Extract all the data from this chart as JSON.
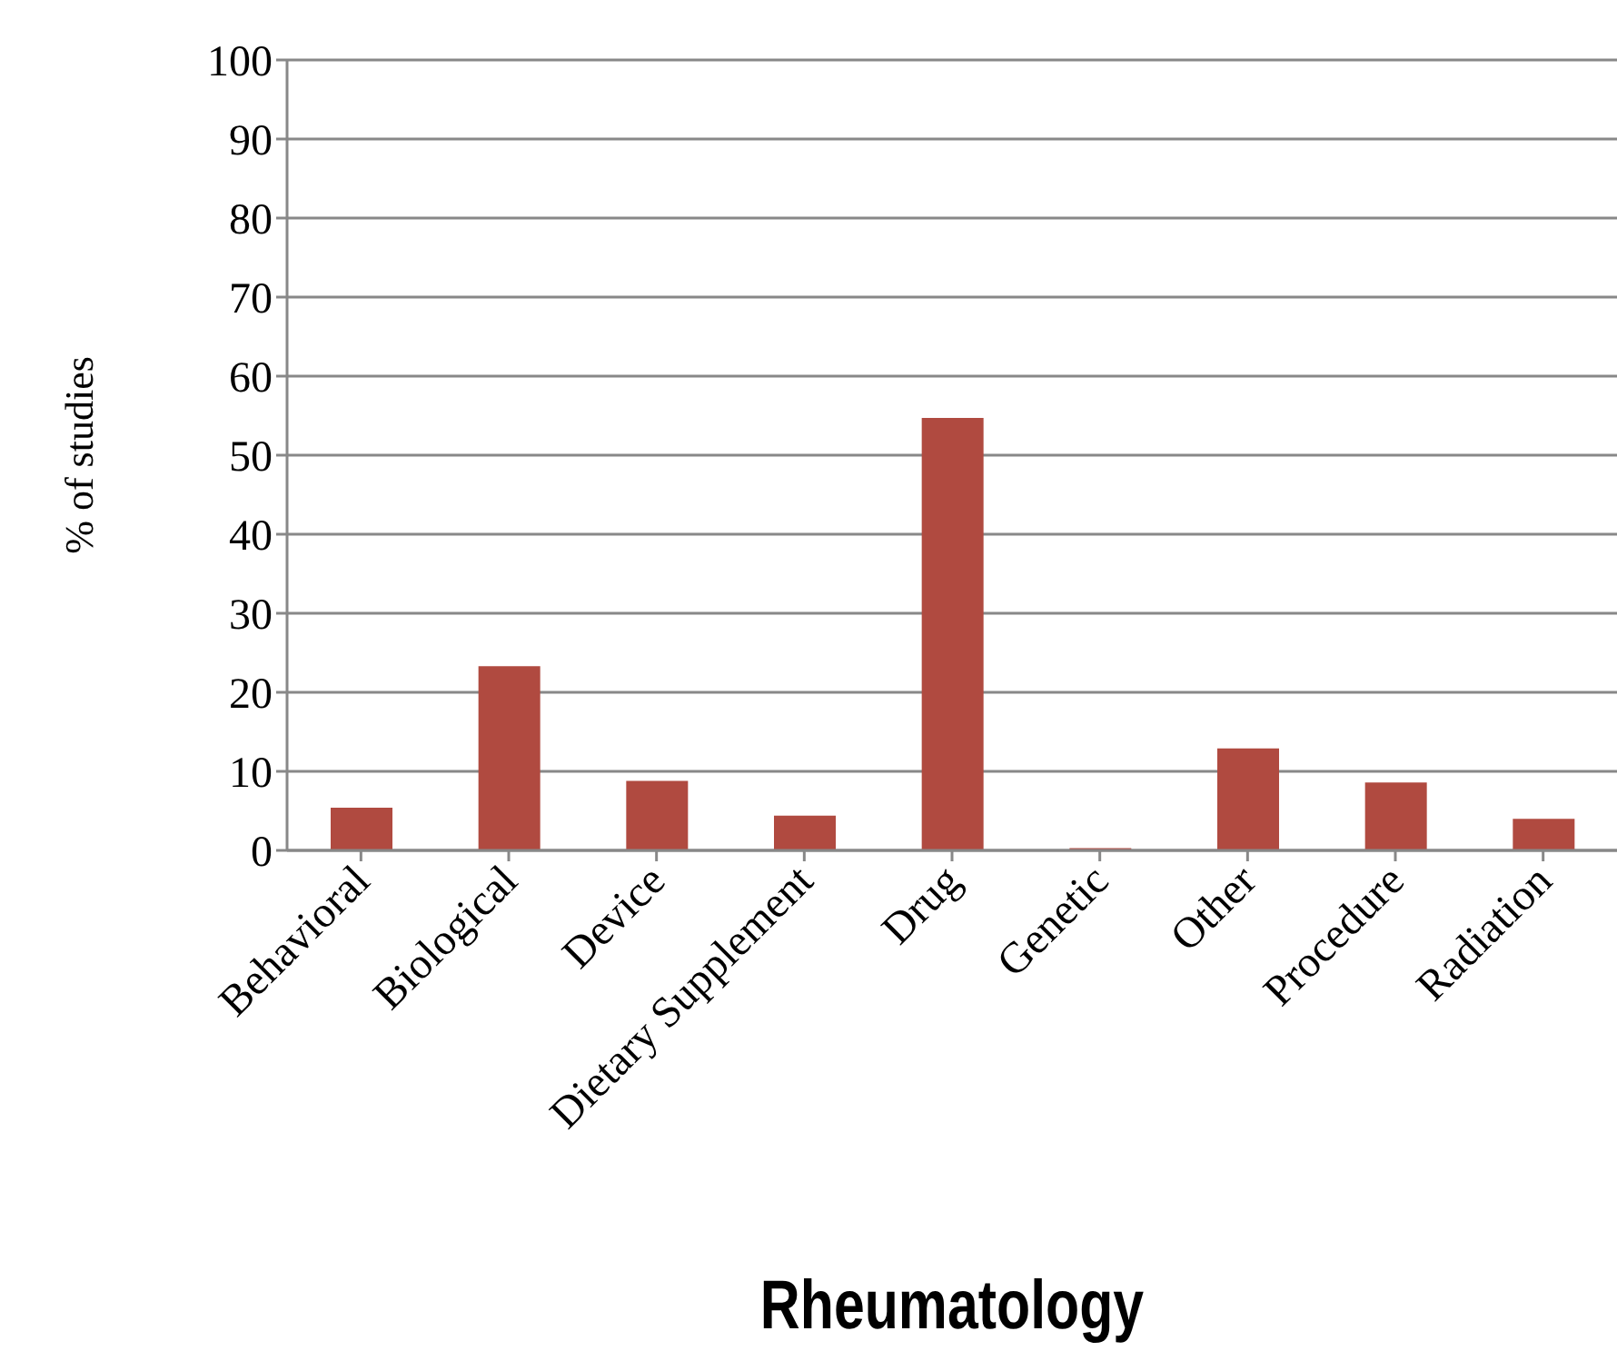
{
  "chart_data": {
    "type": "bar",
    "title": "Rheumatology",
    "ylabel": "% of studies",
    "categories": [
      "Behavioral",
      "Biological",
      "Device",
      "Dietary Supplement",
      "Drug",
      "Genetic",
      "Other",
      "Procedure",
      "Radiation"
    ],
    "values": [
      5.4,
      23.3,
      8.8,
      4.4,
      54.7,
      0.3,
      12.9,
      8.6,
      4.0
    ],
    "color": "#b04a40",
    "ylim": [
      0,
      100
    ],
    "yticks": [
      0,
      10,
      20,
      30,
      40,
      50,
      60,
      70,
      80,
      90,
      100
    ],
    "grid": "y",
    "legend": false
  }
}
